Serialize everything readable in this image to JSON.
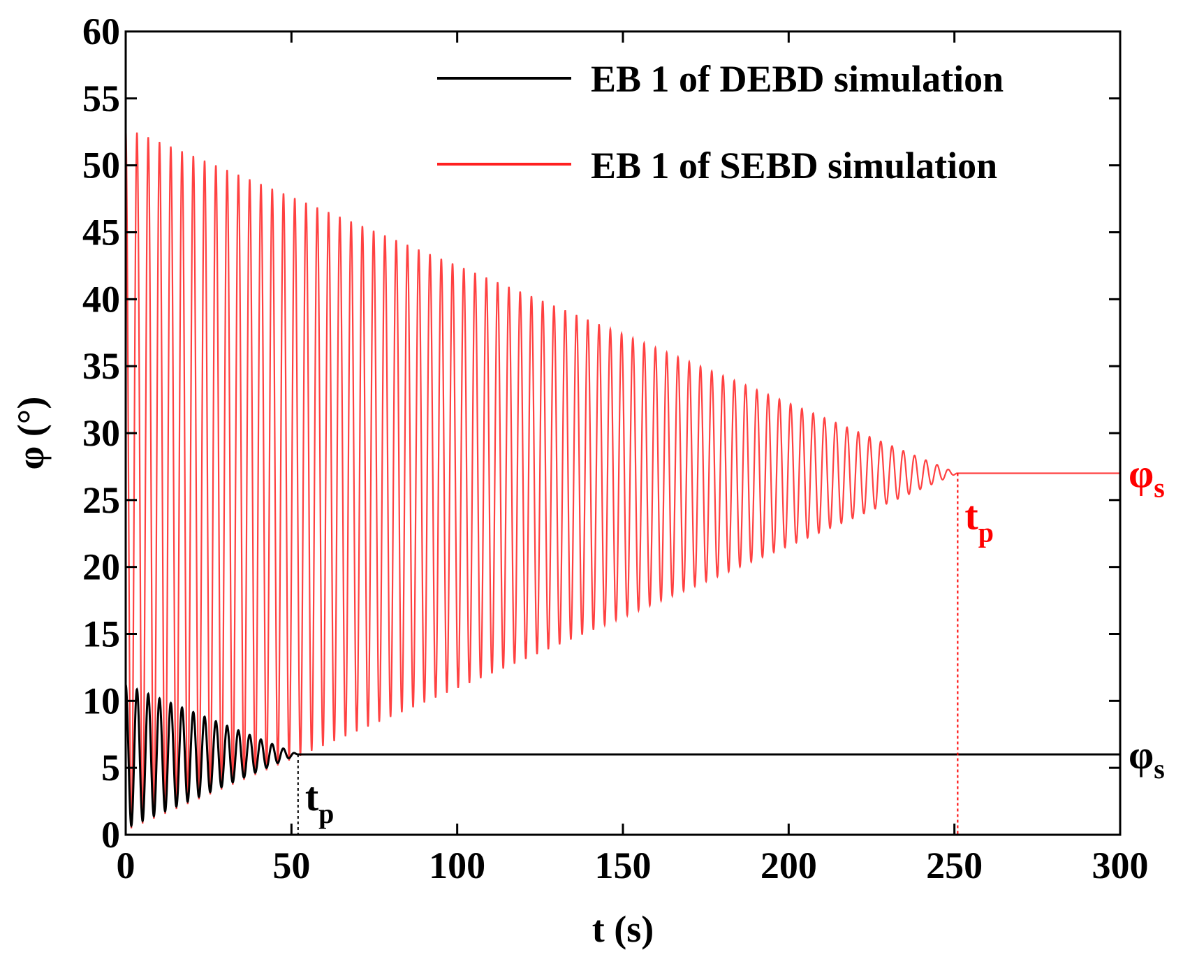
{
  "chart_data": {
    "type": "line",
    "title": "",
    "xlabel": "t (s)",
    "ylabel": "φ (°)",
    "xlim": [
      0,
      300
    ],
    "ylim": [
      0,
      60
    ],
    "xticks": [
      0,
      50,
      100,
      150,
      200,
      250,
      300
    ],
    "yticks": [
      0,
      5,
      10,
      15,
      20,
      25,
      30,
      35,
      40,
      45,
      50,
      55,
      60
    ],
    "grid": false,
    "legend_position": "top-right",
    "series": [
      {
        "name": "EB 1 of DEBD simulation",
        "color": "#000000",
        "start_t": 0,
        "settle_t": 52,
        "end_t": 300,
        "initial_max": 11.2,
        "initial_min": 0.5,
        "steady_value": 6.0,
        "period_s": 3.4
      },
      {
        "name": "EB 1 of SEBD simulation",
        "color": "#ff2020",
        "start_t": 0,
        "settle_t": 251,
        "end_t": 300,
        "initial_max": 52.8,
        "initial_min": 0.3,
        "steady_value": 27.0,
        "period_s": 3.4
      }
    ],
    "annotations": [
      {
        "text": "t",
        "sub": "p",
        "color": "#000000",
        "t": 52,
        "series": "EB 1 of DEBD simulation"
      },
      {
        "text": "t",
        "sub": "p",
        "color": "#ff0000",
        "t": 251,
        "series": "EB 1 of SEBD simulation"
      },
      {
        "text": "φ",
        "sub": "s",
        "color": "#000000",
        "value": 6.0,
        "series": "EB 1 of DEBD simulation"
      },
      {
        "text": "φ",
        "sub": "s",
        "color": "#ff0000",
        "value": 27.0,
        "series": "EB 1 of SEBD simulation"
      }
    ]
  }
}
